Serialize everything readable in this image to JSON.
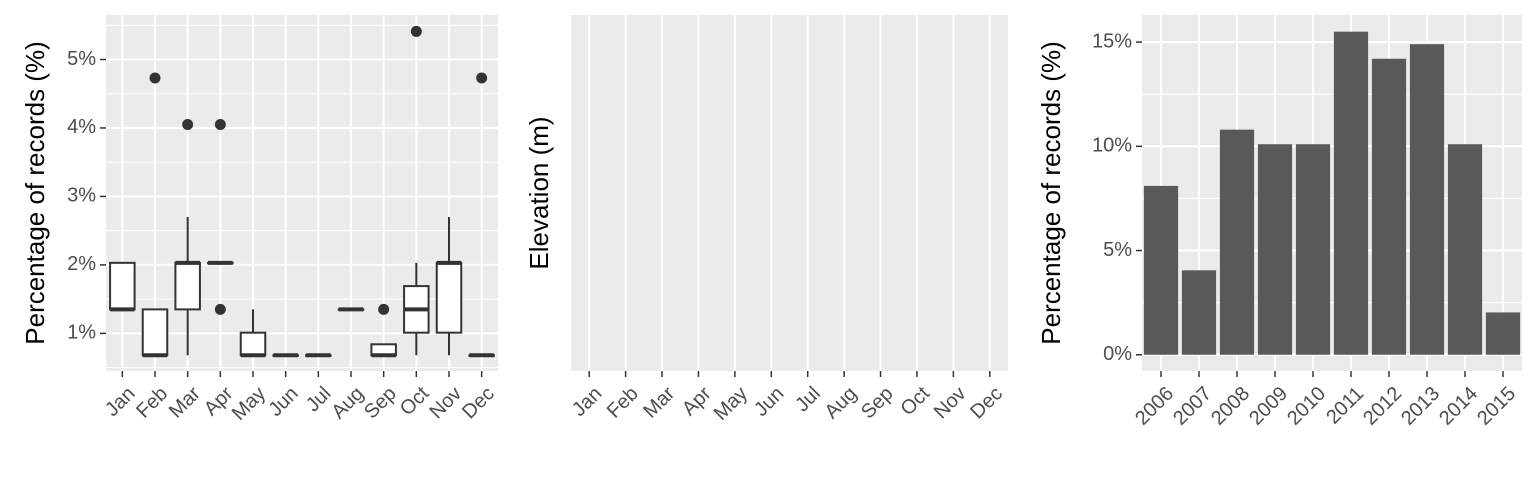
{
  "chart_data": [
    {
      "type": "boxplot",
      "ylabel": "Percentage of records (%)",
      "xlabel": "",
      "categories": [
        "Jan",
        "Feb",
        "Mar",
        "Apr",
        "May",
        "Jun",
        "Jul",
        "Aug",
        "Sep",
        "Oct",
        "Nov",
        "Dec"
      ],
      "y_ticks": [
        1,
        2,
        3,
        4,
        5
      ],
      "y_tick_labels": [
        "1%",
        "2%",
        "3%",
        "4%",
        "5%"
      ],
      "ylim": [
        0.45,
        5.65
      ],
      "grid": true,
      "boxes": [
        {
          "category": "Jan",
          "q1": 1.35,
          "median": 1.35,
          "q3": 2.03,
          "whisker_low": 1.35,
          "whisker_high": 2.03,
          "outliers": []
        },
        {
          "category": "Feb",
          "q1": 0.68,
          "median": 0.68,
          "q3": 1.35,
          "whisker_low": 0.68,
          "whisker_high": 1.35,
          "outliers": [
            4.73
          ]
        },
        {
          "category": "Mar",
          "q1": 1.35,
          "median": 2.03,
          "q3": 2.03,
          "whisker_low": 0.68,
          "whisker_high": 2.7,
          "outliers": [
            4.05
          ]
        },
        {
          "category": "Apr",
          "q1": 2.03,
          "median": 2.03,
          "q3": 2.03,
          "whisker_low": 2.03,
          "whisker_high": 2.03,
          "outliers": [
            1.35,
            4.05
          ]
        },
        {
          "category": "May",
          "q1": 0.68,
          "median": 0.68,
          "q3": 1.01,
          "whisker_low": 0.68,
          "whisker_high": 1.35,
          "outliers": []
        },
        {
          "category": "Jun",
          "q1": 0.68,
          "median": 0.68,
          "q3": 0.68,
          "whisker_low": 0.68,
          "whisker_high": 0.68,
          "outliers": []
        },
        {
          "category": "Jul",
          "q1": 0.68,
          "median": 0.68,
          "q3": 0.68,
          "whisker_low": 0.68,
          "whisker_high": 0.68,
          "outliers": []
        },
        {
          "category": "Aug",
          "q1": 1.35,
          "median": 1.35,
          "q3": 1.35,
          "whisker_low": 1.35,
          "whisker_high": 1.35,
          "outliers": []
        },
        {
          "category": "Sep",
          "q1": 0.68,
          "median": 0.68,
          "q3": 0.84,
          "whisker_low": 0.68,
          "whisker_high": 0.84,
          "outliers": [
            1.35
          ]
        },
        {
          "category": "Oct",
          "q1": 1.01,
          "median": 1.35,
          "q3": 1.69,
          "whisker_low": 0.68,
          "whisker_high": 2.03,
          "outliers": [
            5.41
          ]
        },
        {
          "category": "Nov",
          "q1": 1.01,
          "median": 2.03,
          "q3": 2.03,
          "whisker_low": 0.68,
          "whisker_high": 2.7,
          "outliers": []
        },
        {
          "category": "Dec",
          "q1": 0.68,
          "median": 0.68,
          "q3": 0.68,
          "whisker_low": 0.68,
          "whisker_high": 0.68,
          "outliers": [
            4.73
          ]
        }
      ]
    },
    {
      "type": "boxplot",
      "ylabel": "Elevation (m)",
      "xlabel": "",
      "categories": [
        "Jan",
        "Feb",
        "Mar",
        "Apr",
        "May",
        "Jun",
        "Jul",
        "Aug",
        "Sep",
        "Oct",
        "Nov",
        "Dec"
      ],
      "grid": true,
      "boxes": []
    },
    {
      "type": "bar",
      "ylabel": "Percentage of records (%)",
      "xlabel": "",
      "categories": [
        "2006",
        "2007",
        "2008",
        "2009",
        "2010",
        "2011",
        "2012",
        "2013",
        "2014",
        "2015"
      ],
      "values": [
        8.1,
        4.05,
        10.8,
        10.1,
        10.1,
        15.5,
        14.2,
        14.9,
        10.1,
        2.03
      ],
      "y_ticks": [
        0,
        5,
        10,
        15
      ],
      "y_tick_labels": [
        "0%",
        "5%",
        "10%",
        "15%"
      ],
      "ylim": [
        -0.78,
        16.3
      ],
      "grid": true,
      "bar_color": "#595959"
    }
  ],
  "colors": {
    "panel_background": "#ebebeb",
    "grid": "#ffffff",
    "ink": "#333333",
    "tick_text": "#4d4d4d"
  }
}
